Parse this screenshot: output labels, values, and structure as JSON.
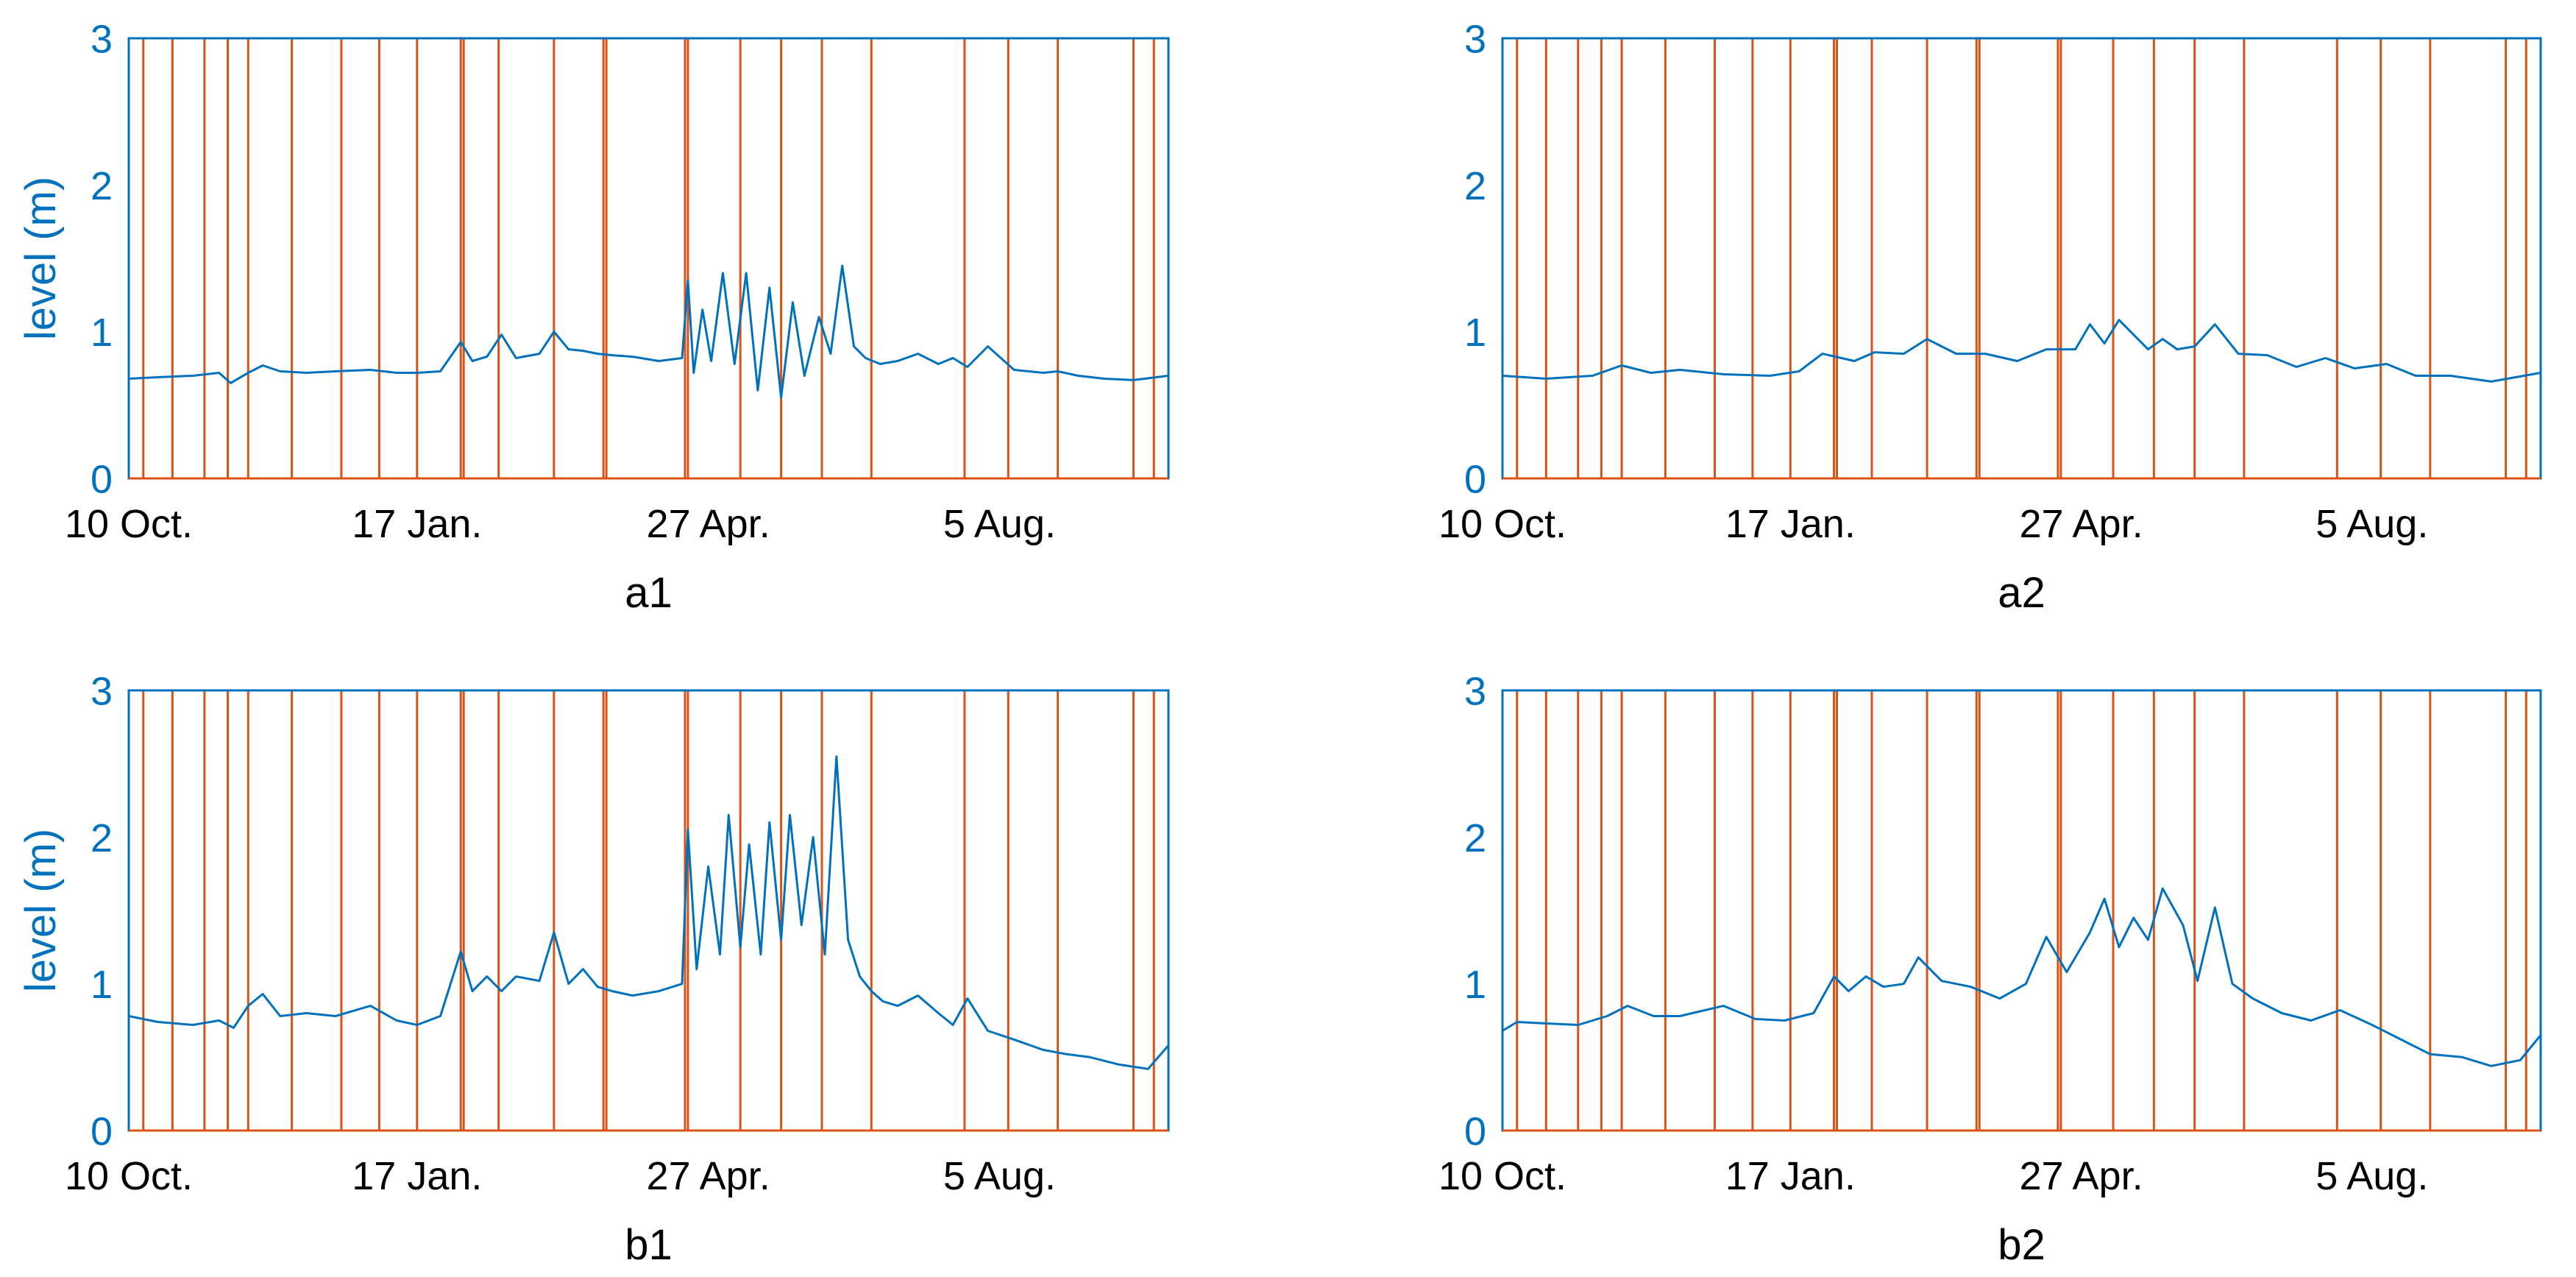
{
  "chart_data": [
    {
      "type": "line",
      "xlabel": "a1",
      "ylabel": "level (m)",
      "ylim": [
        0,
        3
      ],
      "xlim": [
        "2018-10-10",
        "2019-10-02"
      ],
      "yticks": [
        0,
        1,
        2,
        3
      ],
      "xtick_labels": [
        {
          "label": "10 Oct.",
          "date": "2018-10-10"
        },
        {
          "label": "17 Jan.",
          "date": "2019-01-17"
        },
        {
          "label": "27 Apr.",
          "date": "2019-04-27"
        },
        {
          "label": "5 Aug.",
          "date": "2019-08-05"
        }
      ],
      "grid": false,
      "line_color": "#0072bd",
      "event_color": "#d95319",
      "series": [
        {
          "x": [
            "2018-10-10",
            "2018-10-20",
            "2018-11-01",
            "2018-11-10",
            "2018-11-14",
            "2018-11-20",
            "2018-11-25",
            "2018-12-01",
            "2018-12-10",
            "2018-12-20",
            "2019-01-01",
            "2019-01-10",
            "2019-01-17",
            "2019-01-25",
            "2019-02-01",
            "2019-02-05",
            "2019-02-10",
            "2019-02-15",
            "2019-02-20",
            "2019-02-28",
            "2019-03-05",
            "2019-03-10",
            "2019-03-15",
            "2019-03-20",
            "2019-03-25",
            "2019-04-01",
            "2019-04-10",
            "2019-04-18",
            "2019-04-20",
            "2019-04-22",
            "2019-04-25",
            "2019-04-28",
            "2019-05-02",
            "2019-05-06",
            "2019-05-10",
            "2019-05-14",
            "2019-05-18",
            "2019-05-22",
            "2019-05-26",
            "2019-05-30",
            "2019-06-04",
            "2019-06-08",
            "2019-06-12",
            "2019-06-16",
            "2019-06-20",
            "2019-06-25",
            "2019-07-01",
            "2019-07-08",
            "2019-07-15",
            "2019-07-20",
            "2019-07-25",
            "2019-08-01",
            "2019-08-10",
            "2019-08-20",
            "2019-08-25",
            "2019-09-01",
            "2019-09-10",
            "2019-09-20",
            "2019-10-02"
          ],
          "y": [
            0.68,
            0.69,
            0.7,
            0.72,
            0.65,
            0.72,
            0.77,
            0.73,
            0.72,
            0.73,
            0.74,
            0.72,
            0.72,
            0.73,
            0.93,
            0.8,
            0.83,
            0.98,
            0.82,
            0.85,
            1.0,
            0.88,
            0.87,
            0.85,
            0.84,
            0.83,
            0.8,
            0.82,
            1.35,
            0.72,
            1.15,
            0.8,
            1.4,
            0.78,
            1.4,
            0.6,
            1.3,
            0.55,
            1.2,
            0.7,
            1.1,
            0.85,
            1.45,
            0.9,
            0.82,
            0.78,
            0.8,
            0.85,
            0.78,
            0.82,
            0.76,
            0.9,
            0.74,
            0.72,
            0.73,
            0.7,
            0.68,
            0.67,
            0.7
          ]
        }
      ],
      "event_lines": [
        "2018-10-15",
        "2018-10-25",
        "2018-11-05",
        "2018-11-13",
        "2018-11-20",
        "2018-12-05",
        "2018-12-22",
        "2019-01-04",
        "2019-01-17",
        "2019-02-01",
        "2019-02-02",
        "2019-02-14",
        "2019-03-05",
        "2019-03-22",
        "2019-03-23",
        "2019-04-19",
        "2019-04-20",
        "2019-05-08",
        "2019-05-22",
        "2019-06-05",
        "2019-06-22",
        "2019-07-24",
        "2019-08-08",
        "2019-08-25",
        "2019-09-20",
        "2019-09-27"
      ]
    },
    {
      "type": "line",
      "xlabel": "a2",
      "ylabel": "",
      "ylim": [
        0,
        3
      ],
      "xlim": [
        "2018-10-10",
        "2019-10-02"
      ],
      "yticks": [
        0,
        1,
        2,
        3
      ],
      "xtick_labels": [
        {
          "label": "10 Oct.",
          "date": "2018-10-10"
        },
        {
          "label": "17 Jan.",
          "date": "2019-01-17"
        },
        {
          "label": "27 Apr.",
          "date": "2019-04-27"
        },
        {
          "label": "5 Aug.",
          "date": "2019-08-05"
        }
      ],
      "grid": false,
      "line_color": "#0072bd",
      "event_color": "#d95319",
      "series": [
        {
          "x": [
            "2018-10-10",
            "2018-10-25",
            "2018-11-10",
            "2018-11-20",
            "2018-11-30",
            "2018-12-10",
            "2018-12-25",
            "2019-01-10",
            "2019-01-20",
            "2019-01-28",
            "2019-02-08",
            "2019-02-15",
            "2019-02-25",
            "2019-03-05",
            "2019-03-15",
            "2019-03-25",
            "2019-04-05",
            "2019-04-15",
            "2019-04-25",
            "2019-04-30",
            "2019-05-05",
            "2019-05-10",
            "2019-05-15",
            "2019-05-20",
            "2019-05-25",
            "2019-05-30",
            "2019-06-05",
            "2019-06-12",
            "2019-06-20",
            "2019-06-30",
            "2019-07-10",
            "2019-07-20",
            "2019-07-30",
            "2019-08-10",
            "2019-08-20",
            "2019-09-01",
            "2019-09-15",
            "2019-10-02"
          ],
          "y": [
            0.7,
            0.68,
            0.7,
            0.77,
            0.72,
            0.74,
            0.71,
            0.7,
            0.73,
            0.85,
            0.8,
            0.86,
            0.85,
            0.95,
            0.85,
            0.85,
            0.8,
            0.88,
            0.88,
            1.05,
            0.92,
            1.08,
            0.98,
            0.88,
            0.95,
            0.88,
            0.9,
            1.05,
            0.85,
            0.84,
            0.76,
            0.82,
            0.75,
            0.78,
            0.7,
            0.7,
            0.66,
            0.72
          ]
        }
      ],
      "event_lines": [
        "2018-10-15",
        "2018-10-25",
        "2018-11-05",
        "2018-11-13",
        "2018-11-20",
        "2018-12-05",
        "2018-12-22",
        "2019-01-04",
        "2019-01-17",
        "2019-02-01",
        "2019-02-02",
        "2019-02-14",
        "2019-03-05",
        "2019-03-22",
        "2019-03-23",
        "2019-04-19",
        "2019-04-20",
        "2019-05-08",
        "2019-05-22",
        "2019-06-05",
        "2019-06-22",
        "2019-07-24",
        "2019-08-08",
        "2019-08-25",
        "2019-09-20",
        "2019-09-27"
      ]
    },
    {
      "type": "line",
      "xlabel": "b1",
      "ylabel": "level (m)",
      "ylim": [
        0,
        3
      ],
      "xlim": [
        "2018-10-10",
        "2019-10-02"
      ],
      "yticks": [
        0,
        1,
        2,
        3
      ],
      "xtick_labels": [
        {
          "label": "10 Oct.",
          "date": "2018-10-10"
        },
        {
          "label": "17 Jan.",
          "date": "2019-01-17"
        },
        {
          "label": "27 Apr.",
          "date": "2019-04-27"
        },
        {
          "label": "5 Aug.",
          "date": "2019-08-05"
        }
      ],
      "grid": false,
      "line_color": "#0072bd",
      "event_color": "#d95319",
      "series": [
        {
          "x": [
            "2018-10-10",
            "2018-10-20",
            "2018-11-01",
            "2018-11-10",
            "2018-11-15",
            "2018-11-20",
            "2018-11-25",
            "2018-12-01",
            "2018-12-10",
            "2018-12-20",
            "2019-01-01",
            "2019-01-10",
            "2019-01-17",
            "2019-01-25",
            "2019-02-01",
            "2019-02-05",
            "2019-02-10",
            "2019-02-15",
            "2019-02-20",
            "2019-02-28",
            "2019-03-05",
            "2019-03-10",
            "2019-03-15",
            "2019-03-20",
            "2019-03-25",
            "2019-04-01",
            "2019-04-10",
            "2019-04-18",
            "2019-04-20",
            "2019-04-23",
            "2019-04-27",
            "2019-05-01",
            "2019-05-04",
            "2019-05-08",
            "2019-05-11",
            "2019-05-15",
            "2019-05-18",
            "2019-05-22",
            "2019-05-25",
            "2019-05-29",
            "2019-06-02",
            "2019-06-06",
            "2019-06-10",
            "2019-06-14",
            "2019-06-18",
            "2019-06-22",
            "2019-06-26",
            "2019-07-01",
            "2019-07-08",
            "2019-07-15",
            "2019-07-20",
            "2019-07-25",
            "2019-08-01",
            "2019-08-10",
            "2019-08-20",
            "2019-08-28",
            "2019-09-05",
            "2019-09-15",
            "2019-09-25",
            "2019-10-02"
          ],
          "y": [
            0.78,
            0.74,
            0.72,
            0.75,
            0.7,
            0.85,
            0.93,
            0.78,
            0.8,
            0.78,
            0.85,
            0.75,
            0.72,
            0.78,
            1.22,
            0.95,
            1.05,
            0.95,
            1.05,
            1.02,
            1.35,
            1.0,
            1.1,
            0.98,
            0.95,
            0.92,
            0.95,
            1.0,
            2.05,
            1.1,
            1.8,
            1.2,
            2.15,
            1.25,
            1.95,
            1.2,
            2.1,
            1.3,
            2.15,
            1.4,
            2.0,
            1.2,
            2.55,
            1.3,
            1.05,
            0.95,
            0.88,
            0.85,
            0.92,
            0.8,
            0.72,
            0.9,
            0.68,
            0.62,
            0.55,
            0.52,
            0.5,
            0.45,
            0.42,
            0.58
          ]
        }
      ],
      "event_lines": [
        "2018-10-15",
        "2018-10-25",
        "2018-11-05",
        "2018-11-13",
        "2018-11-20",
        "2018-12-05",
        "2018-12-22",
        "2019-01-04",
        "2019-01-17",
        "2019-02-01",
        "2019-02-02",
        "2019-02-14",
        "2019-03-05",
        "2019-03-22",
        "2019-03-23",
        "2019-04-19",
        "2019-04-20",
        "2019-05-08",
        "2019-05-22",
        "2019-06-05",
        "2019-06-22",
        "2019-07-24",
        "2019-08-08",
        "2019-08-25",
        "2019-09-20",
        "2019-09-27"
      ]
    },
    {
      "type": "line",
      "xlabel": "b2",
      "ylabel": "",
      "ylim": [
        0,
        3
      ],
      "xlim": [
        "2018-10-10",
        "2019-10-02"
      ],
      "yticks": [
        0,
        1,
        2,
        3
      ],
      "xtick_labels": [
        {
          "label": "10 Oct.",
          "date": "2018-10-10"
        },
        {
          "label": "17 Jan.",
          "date": "2019-01-17"
        },
        {
          "label": "27 Apr.",
          "date": "2019-04-27"
        },
        {
          "label": "5 Aug.",
          "date": "2019-08-05"
        }
      ],
      "grid": false,
      "line_color": "#0072bd",
      "event_color": "#d95319",
      "series": [
        {
          "x": [
            "2018-10-10",
            "2018-10-15",
            "2018-10-25",
            "2018-11-05",
            "2018-11-15",
            "2018-11-22",
            "2018-12-01",
            "2018-12-10",
            "2018-12-25",
            "2019-01-05",
            "2019-01-15",
            "2019-01-25",
            "2019-02-01",
            "2019-02-06",
            "2019-02-12",
            "2019-02-18",
            "2019-02-25",
            "2019-03-02",
            "2019-03-10",
            "2019-03-20",
            "2019-03-30",
            "2019-04-08",
            "2019-04-15",
            "2019-04-22",
            "2019-04-30",
            "2019-05-05",
            "2019-05-10",
            "2019-05-15",
            "2019-05-20",
            "2019-05-25",
            "2019-06-01",
            "2019-06-06",
            "2019-06-12",
            "2019-06-18",
            "2019-06-25",
            "2019-07-05",
            "2019-07-15",
            "2019-07-25",
            "2019-08-05",
            "2019-08-15",
            "2019-08-25",
            "2019-09-05",
            "2019-09-15",
            "2019-09-25",
            "2019-10-02"
          ],
          "y": [
            0.68,
            0.74,
            0.73,
            0.72,
            0.78,
            0.85,
            0.78,
            0.78,
            0.85,
            0.76,
            0.75,
            0.8,
            1.05,
            0.95,
            1.05,
            0.98,
            1.0,
            1.18,
            1.02,
            0.98,
            0.9,
            1.0,
            1.32,
            1.08,
            1.35,
            1.58,
            1.25,
            1.45,
            1.3,
            1.65,
            1.4,
            1.02,
            1.52,
            1.0,
            0.9,
            0.8,
            0.75,
            0.82,
            0.72,
            0.62,
            0.52,
            0.5,
            0.44,
            0.48,
            0.65
          ]
        }
      ],
      "event_lines": [
        "2018-10-15",
        "2018-10-25",
        "2018-11-05",
        "2018-11-13",
        "2018-11-20",
        "2018-12-05",
        "2018-12-22",
        "2019-01-04",
        "2019-01-17",
        "2019-02-01",
        "2019-02-02",
        "2019-02-14",
        "2019-03-05",
        "2019-03-22",
        "2019-03-23",
        "2019-04-19",
        "2019-04-20",
        "2019-05-08",
        "2019-05-22",
        "2019-06-05",
        "2019-06-22",
        "2019-07-24",
        "2019-08-08",
        "2019-08-25",
        "2019-09-20",
        "2019-09-27"
      ]
    }
  ]
}
